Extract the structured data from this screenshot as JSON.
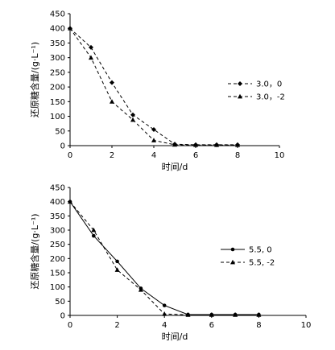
{
  "chart_data": [
    {
      "type": "line",
      "title": "",
      "xlabel": "时间/d",
      "ylabel": "还原糖含量/(g·L⁻¹)",
      "xlim": [
        0,
        10
      ],
      "ylim": [
        0,
        450
      ],
      "xticks": [
        0,
        2,
        4,
        6,
        8,
        10
      ],
      "yticks": [
        0,
        50,
        100,
        150,
        200,
        250,
        300,
        350,
        400,
        450
      ],
      "grid": false,
      "legend_position": "right",
      "series": [
        {
          "name": "3.0，0",
          "style": "dashed",
          "marker": "diamond",
          "x": [
            0,
            1,
            2,
            3,
            4,
            5,
            6,
            7,
            8
          ],
          "y": [
            400,
            335,
            215,
            105,
            55,
            5,
            3,
            3,
            3
          ]
        },
        {
          "name": "3.0，-2",
          "style": "dashed",
          "marker": "triangle",
          "x": [
            0,
            1,
            2,
            3,
            4,
            5,
            6,
            7,
            8
          ],
          "y": [
            400,
            300,
            150,
            88,
            18,
            3,
            2,
            2,
            2
          ]
        }
      ]
    },
    {
      "type": "line",
      "title": "",
      "xlabel": "时间/d",
      "ylabel": "还原糖含量/(g·L⁻¹)",
      "xlim": [
        0,
        10
      ],
      "ylim": [
        0,
        450
      ],
      "xticks": [
        0,
        2,
        4,
        6,
        8,
        10
      ],
      "yticks": [
        0,
        50,
        100,
        150,
        200,
        250,
        300,
        350,
        400,
        450
      ],
      "grid": false,
      "legend_position": "right",
      "series": [
        {
          "name": "5.5, 0",
          "style": "solid",
          "marker": "circle",
          "x": [
            0,
            1,
            2,
            3,
            4,
            5,
            6,
            7,
            8
          ],
          "y": [
            400,
            280,
            190,
            95,
            35,
            3,
            3,
            3,
            3
          ]
        },
        {
          "name": "5.5, -2",
          "style": "dashed",
          "marker": "triangle",
          "x": [
            0,
            1,
            2,
            3,
            4,
            5,
            6,
            7,
            8
          ],
          "y": [
            400,
            300,
            160,
            90,
            5,
            2,
            2,
            2,
            2
          ]
        }
      ]
    }
  ]
}
